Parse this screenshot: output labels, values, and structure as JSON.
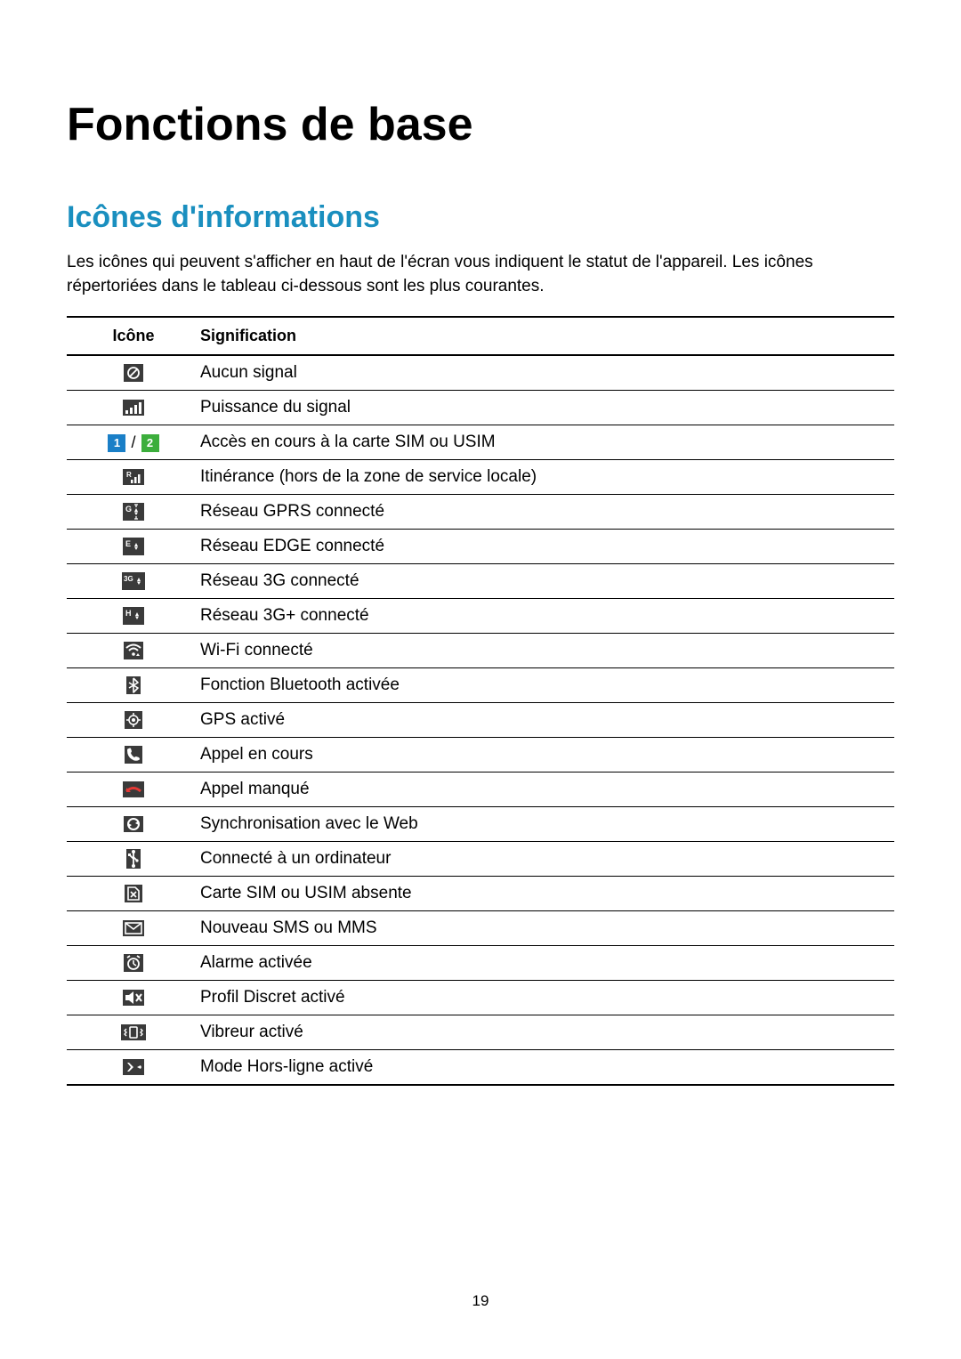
{
  "page": {
    "title": "Fonctions de base",
    "section_title": "Icônes d'informations",
    "intro": "Les icônes qui peuvent s'afficher en haut de l'écran vous indiquent le statut de l'appareil. Les icônes répertoriées dans le tableau ci-dessous sont les plus courantes.",
    "page_number": "19"
  },
  "table": {
    "headers": {
      "icon": "Icône",
      "meaning": "Signification"
    },
    "rows": [
      {
        "icon_name": "no-signal-icon",
        "label": "Aucun signal"
      },
      {
        "icon_name": "signal-icon",
        "label": "Puissance du signal"
      },
      {
        "icon_name": "sim-access-icon",
        "label": "Accès en cours à la carte SIM ou USIM",
        "sim1_color": "#1a7fc7",
        "sim2_color": "#3cae3c"
      },
      {
        "icon_name": "roaming-icon",
        "label": "Itinérance (hors de la zone de service locale)"
      },
      {
        "icon_name": "gprs-icon",
        "label": "Réseau GPRS connecté"
      },
      {
        "icon_name": "edge-icon",
        "label": "Réseau EDGE connecté"
      },
      {
        "icon_name": "3g-icon",
        "label": "Réseau 3G connecté"
      },
      {
        "icon_name": "3g-plus-icon",
        "label": "Réseau 3G+ connecté"
      },
      {
        "icon_name": "wifi-icon",
        "label": "Wi-Fi connecté"
      },
      {
        "icon_name": "bluetooth-icon",
        "label": "Fonction Bluetooth activée"
      },
      {
        "icon_name": "gps-icon",
        "label": "GPS activé"
      },
      {
        "icon_name": "call-icon",
        "label": "Appel en cours"
      },
      {
        "icon_name": "missed-call-icon",
        "label": "Appel manqué"
      },
      {
        "icon_name": "sync-icon",
        "label": "Synchronisation avec le Web"
      },
      {
        "icon_name": "usb-icon",
        "label": "Connecté à un ordinateur"
      },
      {
        "icon_name": "no-sim-icon",
        "label": "Carte SIM ou USIM absente"
      },
      {
        "icon_name": "message-icon",
        "label": "Nouveau SMS ou MMS"
      },
      {
        "icon_name": "alarm-icon",
        "label": "Alarme activée"
      },
      {
        "icon_name": "mute-icon",
        "label": "Profil Discret activé"
      },
      {
        "icon_name": "vibrate-icon",
        "label": "Vibreur activé"
      },
      {
        "icon_name": "airplane-icon",
        "label": "Mode Hors-ligne activé"
      }
    ]
  },
  "styles": {
    "icon_bg": "#3a3a3a",
    "icon_fg": "#ffffff",
    "accent_color": "#1a8fbf",
    "body_bg": "#ffffff",
    "text_color": "#000000"
  }
}
